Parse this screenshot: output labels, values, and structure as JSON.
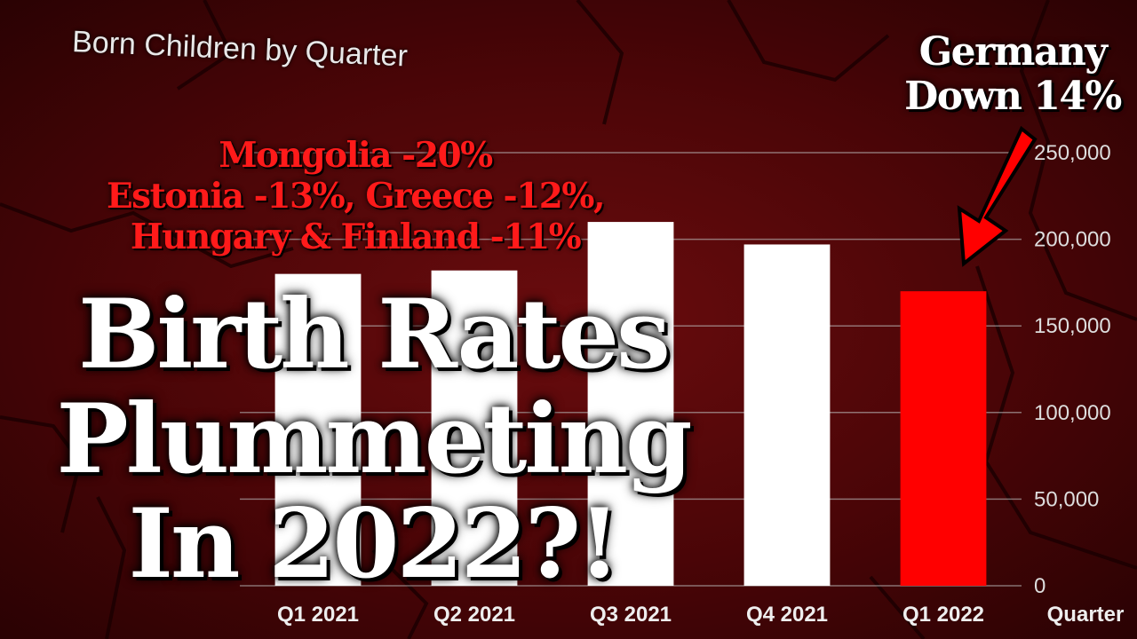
{
  "headline": {
    "line1": "Birth Rates",
    "line2": "Plummeting",
    "line3": "In 2022?!"
  },
  "countries": {
    "line1": "Mongolia -20%",
    "line2": "Estonia -13%, Greece -12%,",
    "line3": "Hungary & Finland -11%"
  },
  "callout": {
    "line1": "Germany",
    "line2": "Down 14%"
  },
  "colors": {
    "highlight": "#ff0000",
    "bar": "#ffffff",
    "background": "#4a0507"
  },
  "chart_data": {
    "type": "bar",
    "title": "Born Children by Quarter",
    "xlabel": "Quarter",
    "ylabel": "",
    "categories": [
      "Q1 2021",
      "Q2 2021",
      "Q3 2021",
      "Q4 2021",
      "Q1 2022"
    ],
    "values": [
      180000,
      182000,
      210000,
      197000,
      170000
    ],
    "highlight_category": "Q1 2022",
    "yticks": [
      "0",
      "50,000",
      "100,000",
      "150,000",
      "200,000",
      "250,000"
    ],
    "ylim": [
      0,
      250000
    ],
    "grid": true
  }
}
